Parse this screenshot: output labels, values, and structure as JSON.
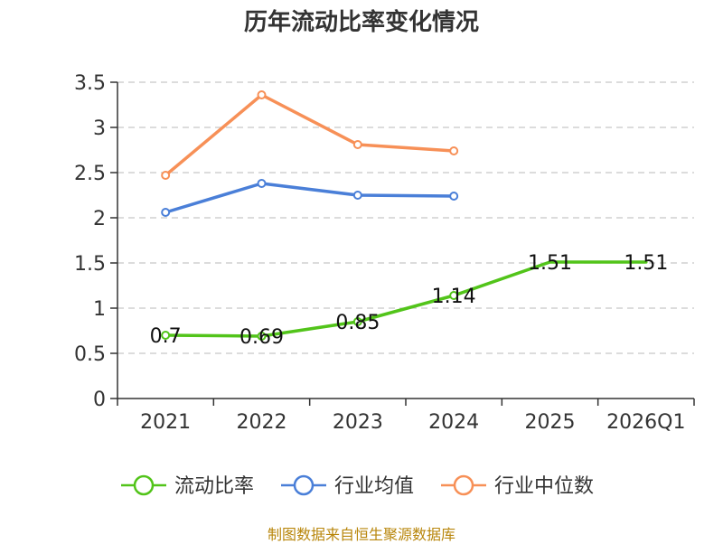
{
  "title": "历年流动比率变化情况",
  "source": "制图数据来自恒生聚源数据库",
  "chart_data": {
    "type": "line",
    "title": "历年流动比率变化情况",
    "categories": [
      "2021",
      "2022",
      "2023",
      "2024",
      "2025",
      "2026Q1"
    ],
    "ylim": [
      0,
      3.5
    ],
    "yticks": [
      "0",
      "0.5",
      "1",
      "1.5",
      "2",
      "2.5",
      "3",
      "3.5"
    ],
    "grid": true,
    "legend_position": "bottom",
    "series": [
      {
        "name": "流动比率",
        "color": "#52c41a",
        "values": [
          0.7,
          0.69,
          0.85,
          1.14,
          1.51,
          1.51
        ],
        "labels": [
          "0.7",
          "0.69",
          "0.85",
          "1.14",
          "1.51",
          "1.51"
        ],
        "show_markers": [
          true,
          true,
          true,
          true,
          false,
          false
        ]
      },
      {
        "name": "行业均值",
        "color": "#4a7fd8",
        "values": [
          2.06,
          2.38,
          2.25,
          2.24,
          null,
          null
        ]
      },
      {
        "name": "行业中位数",
        "color": "#f79057",
        "values": [
          2.47,
          3.36,
          2.81,
          2.74,
          null,
          null
        ]
      }
    ]
  }
}
